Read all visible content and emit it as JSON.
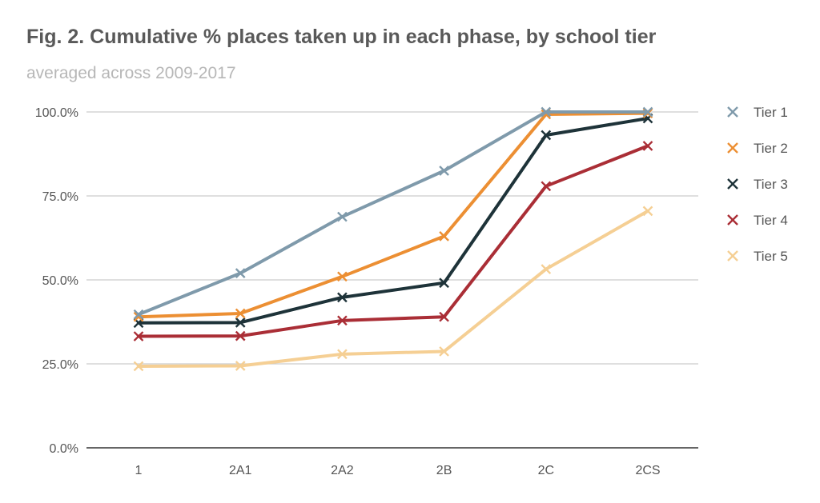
{
  "chart_data": {
    "type": "line",
    "title": "Fig. 2. Cumulative % places taken up in each phase, by school tier",
    "subtitle": "averaged across 2009-2017",
    "xlabel": "",
    "ylabel": "",
    "categories": [
      "1",
      "2A1",
      "2A2",
      "2B",
      "2C",
      "2CS"
    ],
    "ylim": [
      0,
      100
    ],
    "yticks": [
      0,
      25,
      50,
      75,
      100
    ],
    "ytick_labels": [
      "0.0%",
      "25.0%",
      "50.0%",
      "75.0%",
      "100.0%"
    ],
    "grid": true,
    "legend_position": "right",
    "series": [
      {
        "name": "Tier 1",
        "color": "#7f9aab",
        "values": [
          39.7,
          52.0,
          68.8,
          82.5,
          100.0,
          100.0
        ]
      },
      {
        "name": "Tier 2",
        "color": "#ec8f33",
        "values": [
          39.0,
          40.0,
          51.0,
          63.0,
          99.3,
          99.6
        ]
      },
      {
        "name": "Tier 3",
        "color": "#1e3339",
        "values": [
          37.2,
          37.3,
          44.8,
          49.1,
          93.1,
          98.1
        ]
      },
      {
        "name": "Tier 4",
        "color": "#aa2e36",
        "values": [
          33.2,
          33.3,
          37.9,
          39.0,
          77.9,
          89.9
        ]
      },
      {
        "name": "Tier 5",
        "color": "#f5cf94",
        "values": [
          24.3,
          24.4,
          27.9,
          28.7,
          53.2,
          70.5
        ]
      }
    ]
  }
}
